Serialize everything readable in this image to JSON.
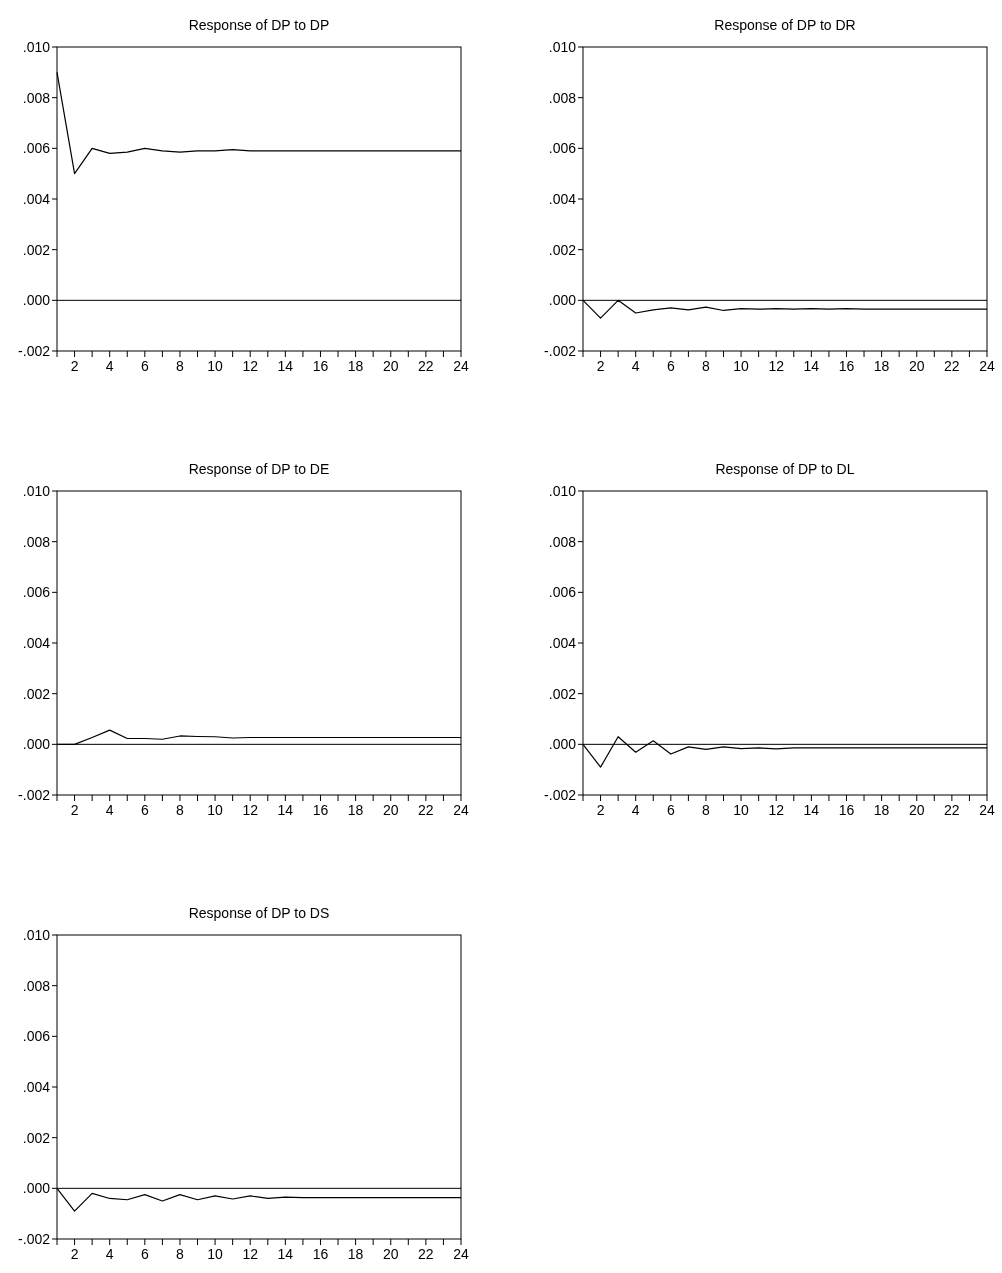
{
  "chart_data": [
    {
      "type": "line",
      "title": "Response of DP to DP",
      "x": [
        1,
        2,
        3,
        4,
        5,
        6,
        7,
        8,
        9,
        10,
        11,
        12,
        13,
        14,
        15,
        16,
        17,
        18,
        19,
        20,
        21,
        22,
        23,
        24
      ],
      "series": [
        {
          "color": "#000000",
          "values": [
            0.009,
            0.005,
            0.006,
            0.0058,
            0.00585,
            0.006,
            0.0059,
            0.00585,
            0.0059,
            0.0059,
            0.00595,
            0.0059,
            0.0059,
            0.0059,
            0.0059,
            0.0059,
            0.0059,
            0.0059,
            0.0059,
            0.0059,
            0.0059,
            0.0059,
            0.0059,
            0.0059
          ]
        }
      ],
      "xlim": [
        1,
        24
      ],
      "xticks": [
        {
          "value": 1,
          "label": null
        },
        2,
        {
          "value": 3,
          "label": null
        },
        4,
        {
          "value": 5,
          "label": null
        },
        6,
        {
          "value": 7,
          "label": null
        },
        8,
        {
          "value": 9,
          "label": null
        },
        10,
        {
          "value": 11,
          "label": null
        },
        12,
        {
          "value": 13,
          "label": null
        },
        14,
        {
          "value": 15,
          "label": null
        },
        16,
        {
          "value": 17,
          "label": null
        },
        18,
        {
          "value": 19,
          "label": null
        },
        20,
        {
          "value": 21,
          "label": null
        },
        22,
        {
          "value": 23,
          "label": null
        },
        24
      ],
      "ylim": [
        -0.002,
        0.01
      ],
      "yticks": [
        {
          "value": -0.002,
          "label": "-.002"
        },
        {
          "value": 0,
          "label": ".000"
        },
        {
          "value": 0.002,
          "label": ".002"
        },
        {
          "value": 0.004,
          "label": ".004"
        },
        {
          "value": 0.006,
          "label": ".006"
        },
        {
          "value": 0.008,
          "label": ".008"
        },
        {
          "value": 0.01,
          "label": ".010"
        }
      ],
      "ref_lines": [
        {
          "axis": "y",
          "value": 0,
          "color": "#000000"
        }
      ]
    },
    {
      "type": "line",
      "title": "Response of DP to DR",
      "x": [
        1,
        2,
        3,
        4,
        5,
        6,
        7,
        8,
        9,
        10,
        11,
        12,
        13,
        14,
        15,
        16,
        17,
        18,
        19,
        20,
        21,
        22,
        23,
        24
      ],
      "series": [
        {
          "color": "#000000",
          "values": [
            0,
            -0.0007,
            0,
            -0.0005,
            -0.00038,
            -0.0003,
            -0.00038,
            -0.00027,
            -0.0004,
            -0.00033,
            -0.00035,
            -0.00033,
            -0.00035,
            -0.00033,
            -0.00035,
            -0.00033,
            -0.00035,
            -0.00035,
            -0.00035,
            -0.00035,
            -0.00035,
            -0.00035,
            -0.00035,
            -0.00035
          ]
        }
      ],
      "xlim": [
        1,
        24
      ],
      "xticks": [
        {
          "value": 1,
          "label": null
        },
        2,
        {
          "value": 3,
          "label": null
        },
        4,
        {
          "value": 5,
          "label": null
        },
        6,
        {
          "value": 7,
          "label": null
        },
        8,
        {
          "value": 9,
          "label": null
        },
        10,
        {
          "value": 11,
          "label": null
        },
        12,
        {
          "value": 13,
          "label": null
        },
        14,
        {
          "value": 15,
          "label": null
        },
        16,
        {
          "value": 17,
          "label": null
        },
        18,
        {
          "value": 19,
          "label": null
        },
        20,
        {
          "value": 21,
          "label": null
        },
        22,
        {
          "value": 23,
          "label": null
        },
        24
      ],
      "ylim": [
        -0.002,
        0.01
      ],
      "yticks": [
        {
          "value": -0.002,
          "label": "-.002"
        },
        {
          "value": 0,
          "label": ".000"
        },
        {
          "value": 0.002,
          "label": ".002"
        },
        {
          "value": 0.004,
          "label": ".004"
        },
        {
          "value": 0.006,
          "label": ".006"
        },
        {
          "value": 0.008,
          "label": ".008"
        },
        {
          "value": 0.01,
          "label": ".010"
        }
      ],
      "ref_lines": [
        {
          "axis": "y",
          "value": 0,
          "color": "#000000"
        }
      ]
    },
    {
      "type": "line",
      "title": "Response of DP to DE",
      "x": [
        1,
        2,
        3,
        4,
        5,
        6,
        7,
        8,
        9,
        10,
        11,
        12,
        13,
        14,
        15,
        16,
        17,
        18,
        19,
        20,
        21,
        22,
        23,
        24
      ],
      "series": [
        {
          "color": "#000000",
          "values": [
            0,
            0,
            0.00027,
            0.00056,
            0.00023,
            0.00023,
            0.0002,
            0.00033,
            0.00031,
            0.0003,
            0.00025,
            0.00027,
            0.00027,
            0.00027,
            0.00027,
            0.00027,
            0.00027,
            0.00027,
            0.00027,
            0.00027,
            0.00027,
            0.00027,
            0.00027,
            0.00027
          ]
        }
      ],
      "xlim": [
        1,
        24
      ],
      "xticks": [
        {
          "value": 1,
          "label": null
        },
        2,
        {
          "value": 3,
          "label": null
        },
        4,
        {
          "value": 5,
          "label": null
        },
        6,
        {
          "value": 7,
          "label": null
        },
        8,
        {
          "value": 9,
          "label": null
        },
        10,
        {
          "value": 11,
          "label": null
        },
        12,
        {
          "value": 13,
          "label": null
        },
        14,
        {
          "value": 15,
          "label": null
        },
        16,
        {
          "value": 17,
          "label": null
        },
        18,
        {
          "value": 19,
          "label": null
        },
        20,
        {
          "value": 21,
          "label": null
        },
        22,
        {
          "value": 23,
          "label": null
        },
        24
      ],
      "ylim": [
        -0.002,
        0.01
      ],
      "yticks": [
        {
          "value": -0.002,
          "label": "-.002"
        },
        {
          "value": 0,
          "label": ".000"
        },
        {
          "value": 0.002,
          "label": ".002"
        },
        {
          "value": 0.004,
          "label": ".004"
        },
        {
          "value": 0.006,
          "label": ".006"
        },
        {
          "value": 0.008,
          "label": ".008"
        },
        {
          "value": 0.01,
          "label": ".010"
        }
      ],
      "ref_lines": [
        {
          "axis": "y",
          "value": 0,
          "color": "#000000"
        }
      ]
    },
    {
      "type": "line",
      "title": "Response of DP to DL",
      "x": [
        1,
        2,
        3,
        4,
        5,
        6,
        7,
        8,
        9,
        10,
        11,
        12,
        13,
        14,
        15,
        16,
        17,
        18,
        19,
        20,
        21,
        22,
        23,
        24
      ],
      "series": [
        {
          "color": "#000000",
          "values": [
            0,
            -0.0009,
            0.0003,
            -0.00031,
            0.00014,
            -0.00038,
            -0.0001,
            -0.0002,
            -0.0001,
            -0.00017,
            -0.00014,
            -0.00018,
            -0.00014,
            -0.00014,
            -0.00014,
            -0.00014,
            -0.00014,
            -0.00014,
            -0.00014,
            -0.00014,
            -0.00014,
            -0.00014,
            -0.00014,
            -0.00014
          ]
        }
      ],
      "xlim": [
        1,
        24
      ],
      "xticks": [
        {
          "value": 1,
          "label": null
        },
        2,
        {
          "value": 3,
          "label": null
        },
        4,
        {
          "value": 5,
          "label": null
        },
        6,
        {
          "value": 7,
          "label": null
        },
        8,
        {
          "value": 9,
          "label": null
        },
        10,
        {
          "value": 11,
          "label": null
        },
        12,
        {
          "value": 13,
          "label": null
        },
        14,
        {
          "value": 15,
          "label": null
        },
        16,
        {
          "value": 17,
          "label": null
        },
        18,
        {
          "value": 19,
          "label": null
        },
        20,
        {
          "value": 21,
          "label": null
        },
        22,
        {
          "value": 23,
          "label": null
        },
        24
      ],
      "ylim": [
        -0.002,
        0.01
      ],
      "yticks": [
        {
          "value": -0.002,
          "label": "-.002"
        },
        {
          "value": 0,
          "label": ".000"
        },
        {
          "value": 0.002,
          "label": ".002"
        },
        {
          "value": 0.004,
          "label": ".004"
        },
        {
          "value": 0.006,
          "label": ".006"
        },
        {
          "value": 0.008,
          "label": ".008"
        },
        {
          "value": 0.01,
          "label": ".010"
        }
      ],
      "ref_lines": [
        {
          "axis": "y",
          "value": 0,
          "color": "#000000"
        }
      ]
    },
    {
      "type": "line",
      "title": "Response of DP to DS",
      "x": [
        1,
        2,
        3,
        4,
        5,
        6,
        7,
        8,
        9,
        10,
        11,
        12,
        13,
        14,
        15,
        16,
        17,
        18,
        19,
        20,
        21,
        22,
        23,
        24
      ],
      "series": [
        {
          "color": "#000000",
          "values": [
            0,
            -0.0009,
            -0.0002,
            -0.0004,
            -0.00045,
            -0.00025,
            -0.0005,
            -0.00025,
            -0.00045,
            -0.0003,
            -0.00042,
            -0.0003,
            -0.0004,
            -0.00035,
            -0.00037,
            -0.00037,
            -0.00037,
            -0.00037,
            -0.00037,
            -0.00037,
            -0.00037,
            -0.00037,
            -0.00037,
            -0.00037
          ]
        }
      ],
      "xlim": [
        1,
        24
      ],
      "xticks": [
        {
          "value": 1,
          "label": null
        },
        2,
        {
          "value": 3,
          "label": null
        },
        4,
        {
          "value": 5,
          "label": null
        },
        6,
        {
          "value": 7,
          "label": null
        },
        8,
        {
          "value": 9,
          "label": null
        },
        10,
        {
          "value": 11,
          "label": null
        },
        12,
        {
          "value": 13,
          "label": null
        },
        14,
        {
          "value": 15,
          "label": null
        },
        16,
        {
          "value": 17,
          "label": null
        },
        18,
        {
          "value": 19,
          "label": null
        },
        20,
        {
          "value": 21,
          "label": null
        },
        22,
        {
          "value": 23,
          "label": null
        },
        24
      ],
      "ylim": [
        -0.002,
        0.01
      ],
      "yticks": [
        {
          "value": -0.002,
          "label": "-.002"
        },
        {
          "value": 0,
          "label": ".000"
        },
        {
          "value": 0.002,
          "label": ".002"
        },
        {
          "value": 0.004,
          "label": ".004"
        },
        {
          "value": 0.006,
          "label": ".006"
        },
        {
          "value": 0.008,
          "label": ".008"
        },
        {
          "value": 0.01,
          "label": ".010"
        }
      ],
      "ref_lines": [
        {
          "axis": "y",
          "value": 0,
          "color": "#000000"
        }
      ]
    }
  ]
}
